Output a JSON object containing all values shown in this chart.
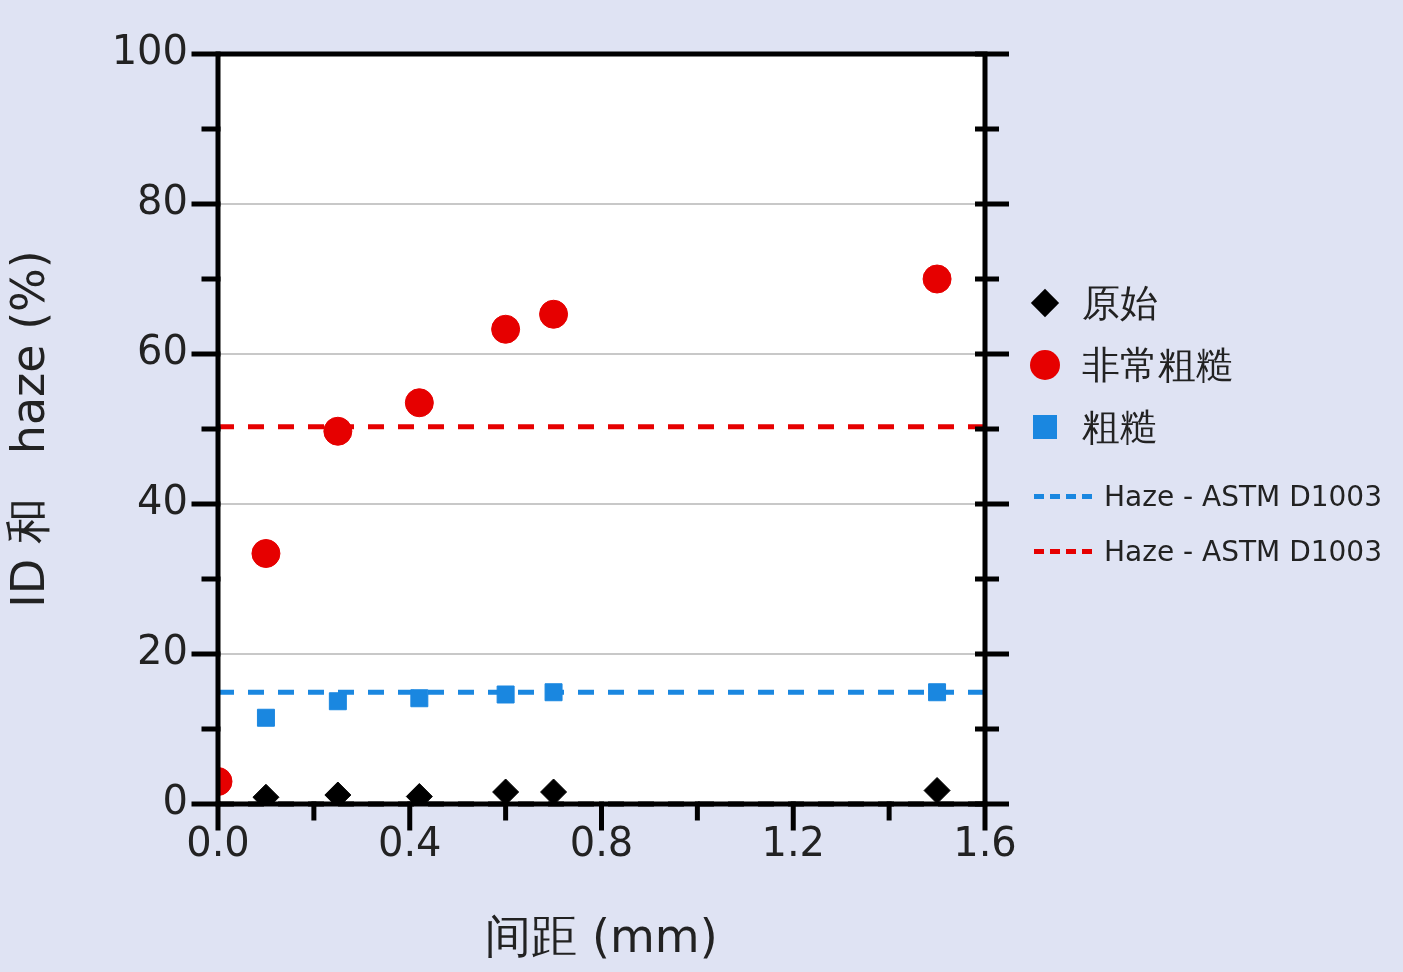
{
  "chart_data": {
    "type": "scatter",
    "xlabel": "间距 (mm)",
    "ylabel": "ID 和   haze (%)",
    "xlim": [
      0,
      1.6
    ],
    "xticks": [
      {
        "value": 0,
        "label": "0.0"
      },
      {
        "value": 0.2,
        "label": null
      },
      {
        "value": 0.4,
        "label": "0.4"
      },
      {
        "value": 0.6,
        "label": null
      },
      {
        "value": 0.8,
        "label": "0.8"
      },
      {
        "value": 1.0,
        "label": null
      },
      {
        "value": 1.2,
        "label": "1.2"
      },
      {
        "value": 1.4,
        "label": null
      },
      {
        "value": 1.6,
        "label": "1.6"
      }
    ],
    "ylim": [
      0,
      100
    ],
    "yticks": [
      0,
      {
        "value": 10,
        "label": null
      },
      20,
      {
        "value": 30,
        "label": null
      },
      40,
      {
        "value": 50,
        "label": null
      },
      60,
      {
        "value": 70,
        "label": null
      },
      80,
      {
        "value": 90,
        "label": null
      },
      100
    ],
    "grid": "y",
    "legend": "right",
    "series": [
      {
        "name": "原始",
        "color": "#000000",
        "marker": "diamond",
        "x": [
          0.1,
          0.25,
          0.42,
          0.6,
          0.7,
          1.5
        ],
        "values": [
          0.9,
          1.2,
          1.0,
          1.6,
          1.6,
          1.8
        ]
      },
      {
        "name": "非常粗糙",
        "color": "#e60000",
        "marker": "circle",
        "x": [
          0,
          0.1,
          0.25,
          0.42,
          0.6,
          0.7,
          1.5
        ],
        "values": [
          3,
          33.4,
          49.7,
          53.5,
          63.3,
          65.3,
          70.0
        ]
      },
      {
        "name": "粗糙",
        "color": "#1a87e0",
        "marker": "square",
        "x": [
          0.1,
          0.25,
          0.42,
          0.6,
          0.7,
          1.5
        ],
        "values": [
          11.5,
          13.7,
          14.1,
          14.6,
          14.9,
          14.9
        ]
      }
    ],
    "ref_lines": [
      {
        "axis": "y",
        "value": 14.9,
        "label": "Haze - ASTM D1003",
        "color": "#1a87e0",
        "line_style": "dashed"
      },
      {
        "axis": "y",
        "value": 50.3,
        "label": "Haze - ASTM D1003",
        "color": "#e60000",
        "line_style": "dashed"
      },
      {
        "axis": "y",
        "value": 0,
        "color": "#000000",
        "line_style": "dashed"
      }
    ]
  }
}
